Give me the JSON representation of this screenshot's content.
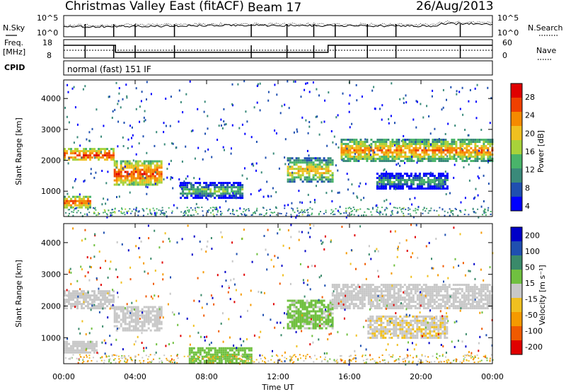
{
  "header": {
    "station": "Christmas Valley East (fitACF)",
    "beam": "Beam 17",
    "date": "26/Aug/2013"
  },
  "aux_panel": {
    "nsky_label": "N.Sky",
    "nsearch_label": "N.Search",
    "noise_ticks": [
      "10^5",
      "10^0"
    ],
    "freq_label_1": "Freq.",
    "freq_label_2": "[MHz]",
    "freq_ticks": [
      "18",
      "8"
    ],
    "nave_label": "Nave",
    "nave_ticks": [
      "60",
      "0"
    ],
    "cpid_label": "CPID",
    "cpid_value": "normal (fast) 151 IF"
  },
  "colors": {
    "power_scale": [
      "#0000ff",
      "#1f4fb0",
      "#3a8a7a",
      "#49b46a",
      "#a8d23a",
      "#f0c020",
      "#f58a00",
      "#f04000",
      "#e00000"
    ],
    "velocity_scale": [
      "#e00000",
      "#f05a00",
      "#f59a00",
      "#f0c020",
      "#c8c8c8",
      "#70c040",
      "#3a8a6a",
      "#1f4fb0",
      "#0000c8"
    ]
  },
  "chart_data": [
    {
      "type": "heatmap",
      "panel": "power",
      "xlabel": "",
      "ylabel": "Slant Range [km]",
      "ylim": [
        180,
        4600
      ],
      "y_ticks": [
        "1000",
        "2000",
        "3000",
        "4000"
      ],
      "x_ticks": [
        "00:00",
        "04:00",
        "08:00",
        "12:00",
        "16:00",
        "20:00",
        "00:00"
      ],
      "colorbar": {
        "label": "Power [dB]",
        "ticks": [
          "28",
          "24",
          "20",
          "16",
          "12",
          "8",
          "4"
        ],
        "range": [
          0,
          30
        ]
      },
      "echo_bands": [
        {
          "hours": [
            0,
            2.8
          ],
          "range_km": [
            2000,
            2400
          ],
          "power_db": 27
        },
        {
          "hours": [
            0,
            1.5
          ],
          "range_km": [
            500,
            850
          ],
          "power_db": 26
        },
        {
          "hours": [
            2.8,
            5.5
          ],
          "range_km": [
            1200,
            2000
          ],
          "power_db": 26
        },
        {
          "hours": [
            6.5,
            10.0
          ],
          "range_km": [
            800,
            1300
          ],
          "power_db": 14
        },
        {
          "hours": [
            12.5,
            15.0
          ],
          "range_km": [
            1300,
            2100
          ],
          "power_db": 20
        },
        {
          "hours": [
            15.5,
            24.0
          ],
          "range_km": [
            2000,
            2700
          ],
          "power_db": 23
        },
        {
          "hours": [
            17.5,
            21.5
          ],
          "range_km": [
            1100,
            1600
          ],
          "power_db": 12
        }
      ]
    },
    {
      "type": "heatmap",
      "panel": "velocity",
      "xlabel": "Time UT",
      "ylabel": "Slant Range [km]",
      "ylim": [
        180,
        4600
      ],
      "y_ticks": [
        "1000",
        "2000",
        "3000",
        "4000"
      ],
      "x_ticks": [
        "00:00",
        "04:00",
        "08:00",
        "12:00",
        "16:00",
        "20:00",
        "00:00"
      ],
      "colorbar": {
        "label": "Velocity [m s⁻¹]",
        "ticks": [
          "200",
          "100",
          "50",
          "15",
          "-15",
          "-50",
          "-100",
          "-200"
        ],
        "range": [
          -250,
          250
        ]
      },
      "echo_bands": [
        {
          "hours": [
            0,
            2.8
          ],
          "range_km": [
            1900,
            2500
          ],
          "velocity": 0
        },
        {
          "hours": [
            0,
            1.8
          ],
          "range_km": [
            500,
            900
          ],
          "velocity": 0
        },
        {
          "hours": [
            2.8,
            5.5
          ],
          "range_km": [
            1200,
            2000
          ],
          "velocity": 0
        },
        {
          "hours": [
            7.0,
            10.5
          ],
          "range_km": [
            200,
            700
          ],
          "velocity": 60
        },
        {
          "hours": [
            12.5,
            15.0
          ],
          "range_km": [
            1300,
            2200
          ],
          "velocity": 40
        },
        {
          "hours": [
            15.0,
            24.0
          ],
          "range_km": [
            1900,
            2700
          ],
          "velocity": 0
        },
        {
          "hours": [
            17.0,
            21.5
          ],
          "range_km": [
            1000,
            1700
          ],
          "velocity": -20
        }
      ]
    }
  ]
}
